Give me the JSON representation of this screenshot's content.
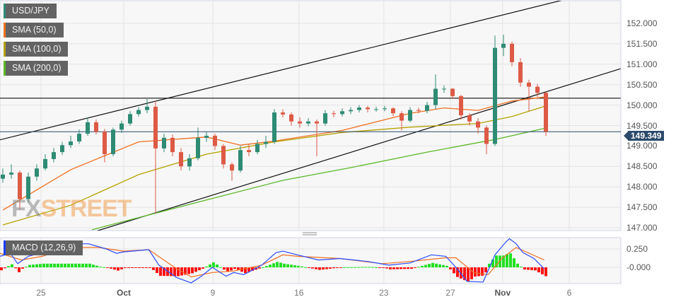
{
  "chart_data": {
    "type": "candlestick",
    "symbol": "USD/JPY",
    "legend": [
      {
        "label": "USD/JPY",
        "color": "#2e8b74"
      },
      {
        "label": "SMA (50,0)",
        "color": "#f07020"
      },
      {
        "label": "SMA (100,0)",
        "color": "#b5a200"
      },
      {
        "label": "SMA (200,0)",
        "color": "#5cb82a"
      }
    ],
    "current_price": "149.349",
    "y_ticks": [
      "152.000",
      "151.500",
      "151.000",
      "150.500",
      "150.000",
      "149.500",
      "149.000",
      "148.500",
      "148.000",
      "147.500",
      "147.000"
    ],
    "ylim": [
      146.95,
      152.57
    ],
    "x_ticks": [
      {
        "label": "25",
        "bar": 4.5,
        "bold": false
      },
      {
        "label": "Oct",
        "bar": 14.25,
        "bold": true
      },
      {
        "label": "9",
        "bar": 24.75,
        "bold": false
      },
      {
        "label": "16",
        "bar": 34.9,
        "bold": false
      },
      {
        "label": "23",
        "bar": 44.9,
        "bold": false
      },
      {
        "label": "27",
        "bar": 52.75,
        "bold": false
      },
      {
        "label": "Nov",
        "bar": 58.9,
        "bold": true
      },
      {
        "label": "6",
        "bar": 66.75,
        "bold": false
      }
    ],
    "grid": true,
    "colors": {
      "up": "#2e8b74",
      "down": "#dd5a45",
      "price_line": "#2b4a6b"
    },
    "ohlc": [
      [
        148.2,
        148.45,
        148.1,
        148.3
      ],
      [
        148.3,
        148.55,
        148.2,
        148.35
      ],
      [
        148.35,
        148.4,
        147.45,
        147.7
      ],
      [
        147.7,
        148.35,
        147.6,
        148.25
      ],
      [
        148.25,
        148.55,
        148.15,
        148.45
      ],
      [
        148.45,
        148.8,
        148.4,
        148.68
      ],
      [
        148.68,
        148.95,
        148.6,
        148.85
      ],
      [
        148.85,
        149.1,
        148.78,
        149.02
      ],
      [
        149.02,
        149.25,
        148.95,
        149.11
      ],
      [
        149.11,
        149.4,
        149.05,
        149.3
      ],
      [
        149.3,
        149.7,
        149.25,
        149.58
      ],
      [
        149.58,
        149.65,
        149.28,
        149.35
      ],
      [
        149.35,
        149.42,
        148.6,
        148.8
      ],
      [
        148.8,
        149.45,
        148.75,
        149.4
      ],
      [
        149.4,
        149.62,
        149.32,
        149.55
      ],
      [
        149.55,
        149.85,
        149.5,
        149.78
      ],
      [
        149.78,
        149.95,
        149.72,
        149.88
      ],
      [
        149.88,
        150.15,
        149.8,
        149.96
      ],
      [
        149.96,
        150.1,
        147.35,
        148.94
      ],
      [
        148.94,
        149.3,
        148.85,
        149.2
      ],
      [
        149.2,
        149.28,
        148.75,
        148.85
      ],
      [
        148.85,
        148.95,
        148.4,
        148.5
      ],
      [
        148.5,
        148.8,
        148.4,
        148.7
      ],
      [
        148.7,
        149.45,
        148.65,
        149.2
      ],
      [
        149.2,
        149.35,
        149.1,
        149.25
      ],
      [
        149.25,
        149.3,
        148.9,
        149.0
      ],
      [
        149.0,
        149.05,
        148.45,
        148.55
      ],
      [
        148.55,
        148.6,
        148.15,
        148.4
      ],
      [
        148.4,
        149.0,
        148.35,
        148.9
      ],
      [
        148.9,
        149.05,
        148.75,
        148.85
      ],
      [
        148.85,
        149.15,
        148.8,
        149.05
      ],
      [
        149.05,
        149.25,
        148.95,
        149.1
      ],
      [
        149.1,
        149.9,
        149.05,
        149.82
      ],
      [
        149.82,
        149.9,
        149.7,
        149.77
      ],
      [
        149.77,
        149.82,
        149.5,
        149.6
      ],
      [
        149.6,
        149.7,
        149.45,
        149.55
      ],
      [
        149.55,
        149.68,
        149.48,
        149.6
      ],
      [
        149.6,
        149.65,
        148.75,
        149.55
      ],
      [
        149.55,
        149.88,
        149.5,
        149.8
      ],
      [
        149.8,
        149.86,
        149.7,
        149.78
      ],
      [
        149.78,
        149.92,
        149.72,
        149.85
      ],
      [
        149.85,
        149.95,
        149.78,
        149.88
      ],
      [
        149.88,
        150.0,
        149.82,
        149.94
      ],
      [
        149.94,
        149.98,
        149.82,
        149.9
      ],
      [
        149.9,
        149.96,
        149.84,
        149.9
      ],
      [
        149.9,
        149.98,
        149.85,
        149.92
      ],
      [
        149.92,
        149.95,
        149.72,
        149.8
      ],
      [
        149.8,
        149.85,
        149.38,
        149.62
      ],
      [
        149.62,
        149.95,
        149.58,
        149.88
      ],
      [
        149.88,
        149.94,
        149.8,
        149.86
      ],
      [
        149.86,
        150.08,
        149.8,
        150.0
      ],
      [
        150.0,
        150.75,
        149.9,
        150.4
      ],
      [
        150.4,
        150.48,
        150.3,
        150.4
      ],
      [
        150.4,
        150.42,
        150.15,
        150.22
      ],
      [
        150.22,
        150.25,
        149.65,
        149.75
      ],
      [
        149.75,
        149.8,
        149.5,
        149.6
      ],
      [
        149.6,
        149.68,
        149.3,
        149.45
      ],
      [
        149.45,
        149.5,
        148.8,
        149.05
      ],
      [
        149.05,
        151.7,
        149.0,
        151.4
      ],
      [
        151.4,
        151.72,
        151.2,
        151.5
      ],
      [
        151.5,
        151.55,
        150.95,
        151.05
      ],
      [
        151.05,
        151.15,
        150.45,
        150.55
      ],
      [
        150.55,
        150.62,
        149.85,
        150.45
      ],
      [
        150.45,
        150.52,
        150.2,
        150.3
      ],
      [
        150.3,
        150.32,
        149.25,
        149.35
      ]
    ],
    "sma": [
      {
        "label": "SMA (50,0)",
        "color": "#f07020",
        "points": [
          [
            0,
            147.43
          ],
          [
            8,
            148.42
          ],
          [
            16,
            149.1
          ],
          [
            24,
            149.22
          ],
          [
            28,
            149.02
          ],
          [
            32,
            149.12
          ],
          [
            40,
            149.38
          ],
          [
            48,
            149.8
          ],
          [
            52,
            149.93
          ],
          [
            56,
            149.87
          ],
          [
            60,
            150.1
          ],
          [
            64,
            150.2
          ]
        ]
      },
      {
        "label": "SMA (100,0)",
        "color": "#b5a200",
        "points": [
          [
            0,
            147.07
          ],
          [
            8,
            147.55
          ],
          [
            16,
            148.3
          ],
          [
            24,
            148.8
          ],
          [
            32,
            149.1
          ],
          [
            40,
            149.33
          ],
          [
            48,
            149.46
          ],
          [
            56,
            149.55
          ],
          [
            60,
            149.72
          ],
          [
            64,
            149.98
          ]
        ]
      },
      {
        "label": "SMA (200,0)",
        "color": "#5cb82a",
        "points": [
          [
            10.5,
            146.95
          ],
          [
            24,
            147.68
          ],
          [
            33,
            148.16
          ],
          [
            41,
            148.47
          ],
          [
            50,
            148.85
          ],
          [
            58,
            149.16
          ],
          [
            64,
            149.44
          ]
        ]
      }
    ],
    "trendlines": [
      {
        "color": "#111111",
        "points": [
          [
            -0.33,
            149.15
          ],
          [
            72.8,
            152.92
          ]
        ]
      },
      {
        "color": "#111111",
        "points": [
          [
            10.9,
            146.91
          ],
          [
            72.8,
            150.89
          ]
        ]
      },
      {
        "color": "#111111",
        "points": [
          [
            -0.5,
            150.17
          ],
          [
            72.8,
            150.17
          ]
        ]
      }
    ],
    "macd": {
      "label": "MACD (12,26,9)",
      "legend_color": "#1a3cff",
      "y_ticks": [
        "0.250",
        "-0.000"
      ],
      "macd_color": "#2a4cff",
      "signal_color": "#f07020",
      "hist_up_color": "#22e022",
      "hist_down_color": "#ff1010",
      "macd_line": [
        [
          -0.33,
          0.15
        ],
        [
          0.9,
          0.19
        ],
        [
          1.75,
          0.05
        ],
        [
          3,
          0.15
        ],
        [
          4.67,
          0.2
        ],
        [
          8,
          0.32
        ],
        [
          10.1,
          0.32
        ],
        [
          12.2,
          0.25
        ],
        [
          13.4,
          0.19
        ],
        [
          14.25,
          0.21
        ],
        [
          17.2,
          0.24
        ],
        [
          18.4,
          0.03
        ],
        [
          20.5,
          -0.14
        ],
        [
          22.2,
          -0.21
        ],
        [
          23.4,
          -0.12
        ],
        [
          24.7,
          0.0
        ],
        [
          26.3,
          -0.12
        ],
        [
          27.2,
          -0.07
        ],
        [
          28.4,
          -0.1
        ],
        [
          30.5,
          0.03
        ],
        [
          32.2,
          0.2
        ],
        [
          33,
          0.22
        ],
        [
          34.7,
          0.17
        ],
        [
          37.2,
          0.1
        ],
        [
          39.7,
          0.12
        ],
        [
          43,
          0.08
        ],
        [
          45.5,
          0.03
        ],
        [
          48,
          0.06
        ],
        [
          50.5,
          0.17
        ],
        [
          52.2,
          0.15
        ],
        [
          53.4,
          0.0
        ],
        [
          54.7,
          -0.19
        ],
        [
          56.6,
          -0.2
        ],
        [
          58,
          0.17
        ],
        [
          59.25,
          0.34
        ],
        [
          59.7,
          0.39
        ],
        [
          60.5,
          0.32
        ],
        [
          61.3,
          0.2
        ],
        [
          62.6,
          0.12
        ],
        [
          63.8,
          -0.02
        ]
      ],
      "signal_line": [
        [
          -0.33,
          0.19
        ],
        [
          2.2,
          0.1
        ],
        [
          4.67,
          0.15
        ],
        [
          8,
          0.27
        ],
        [
          11.3,
          0.27
        ],
        [
          14.25,
          0.22
        ],
        [
          17.2,
          0.24
        ],
        [
          20.5,
          -0.02
        ],
        [
          22.2,
          -0.13
        ],
        [
          24.7,
          -0.07
        ],
        [
          27.2,
          -0.05
        ],
        [
          30.5,
          0.03
        ],
        [
          33,
          0.17
        ],
        [
          34.7,
          0.15
        ],
        [
          39.7,
          0.12
        ],
        [
          44.7,
          0.05
        ],
        [
          48,
          0.08
        ],
        [
          52.2,
          0.13
        ],
        [
          53.4,
          0.13
        ],
        [
          55.5,
          -0.07
        ],
        [
          57.2,
          -0.1
        ],
        [
          58.8,
          0.12
        ],
        [
          60.5,
          0.27
        ],
        [
          63.8,
          0.1
        ]
      ]
    }
  },
  "watermark": {
    "part1": "FX",
    "part2": "STREET"
  }
}
